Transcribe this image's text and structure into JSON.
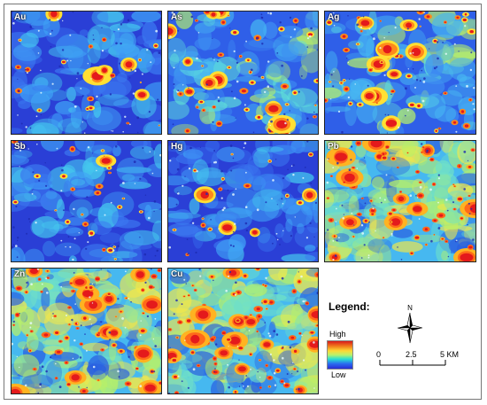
{
  "panels": [
    {
      "id": "au",
      "label": "Au",
      "style": "lowbg",
      "hotspots": 22,
      "seed": 11
    },
    {
      "id": "as",
      "label": "As",
      "style": "mixed",
      "hotspots": 45,
      "seed": 23
    },
    {
      "id": "ag",
      "label": "Ag",
      "style": "mixed",
      "hotspots": 50,
      "seed": 37
    },
    {
      "id": "sb",
      "label": "Sb",
      "style": "lowbg",
      "hotspots": 26,
      "seed": 41
    },
    {
      "id": "hg",
      "label": "Hg",
      "style": "lowbg",
      "hotspots": 18,
      "seed": 53
    },
    {
      "id": "pb",
      "label": "Pb",
      "style": "highbg",
      "hotspots": 70,
      "seed": 67
    },
    {
      "id": "zn",
      "label": "Zn",
      "style": "highbg",
      "hotspots": 75,
      "seed": 79
    },
    {
      "id": "cu",
      "label": "Cu",
      "style": "highbg",
      "hotspots": 80,
      "seed": 83
    }
  ],
  "legend": {
    "title": "Legend:",
    "high": "High",
    "low": "Low",
    "ramp_colors": [
      "#d7191c",
      "#fdd835",
      "#27e0d2",
      "#2a2ad6"
    ]
  },
  "north_arrow": {
    "label": "N"
  },
  "scale_bar": {
    "ticks": [
      "0",
      "2.5",
      "5 KM"
    ]
  }
}
